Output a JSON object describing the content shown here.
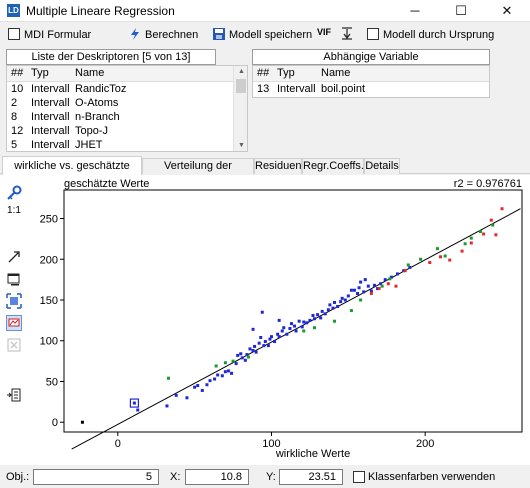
{
  "window": {
    "title": "Multiple Lineare Regression",
    "app_icon_text": "LD",
    "minimize_glyph": "─",
    "maximize_glyph": "☐",
    "close_glyph": "✕"
  },
  "toolbar": {
    "mdi_label": "MDI Formular",
    "mdi_checked": false,
    "calc_label": "Berechnen",
    "save_label": "Modell speichern",
    "vif_label": "VIF",
    "origin_label": "Modell durch Ursprung",
    "origin_checked": false
  },
  "descriptors": {
    "title": "Liste der Deskriptoren [5 von 13]",
    "columns": [
      "##",
      "Typ",
      "Name"
    ],
    "rows": [
      {
        "num": "10",
        "typ": "Intervall",
        "name": "RandicToz"
      },
      {
        "num": "2",
        "typ": "Intervall",
        "name": "O-Atoms"
      },
      {
        "num": "8",
        "typ": "Intervall",
        "name": "n-Branch"
      },
      {
        "num": "12",
        "typ": "Intervall",
        "name": "Topo-J"
      },
      {
        "num": "5",
        "typ": "Intervall",
        "name": "JHET"
      }
    ]
  },
  "dependent": {
    "title": "Abhängige Variable",
    "columns": [
      "##",
      "Typ",
      "Name"
    ],
    "rows": [
      {
        "num": "13",
        "typ": "Intervall",
        "name": "boil.point"
      }
    ]
  },
  "tabs": [
    {
      "label": "wirkliche vs. geschätzte Werte",
      "active": true
    },
    {
      "label": "Verteilung der Residuen",
      "active": false
    },
    {
      "label": "Residuen",
      "active": false
    },
    {
      "label": "Regr.Coeffs.",
      "active": false
    },
    {
      "label": "Details",
      "active": false
    }
  ],
  "sidebar": {
    "scale_label": "1:1",
    "icons": [
      "key-icon",
      "scale-1-1-icon",
      "diagonal-arrow-icon",
      "window-icon",
      "zoom-fit-icon",
      "class-colors-icon",
      "close-box-icon",
      "export-icon"
    ]
  },
  "chart_data": {
    "type": "scatter",
    "ylabel": "geschätzte Werte",
    "xlabel": "wirkliche Werte",
    "r2_text": "r2 = 0.976761",
    "xlim": [
      -35,
      263
    ],
    "ylim": [
      -12,
      285
    ],
    "xticks": [
      0,
      100,
      200
    ],
    "yticks": [
      0,
      50,
      100,
      150,
      200,
      250
    ],
    "grid": false,
    "regression_line": {
      "x1": -30,
      "y1": -33,
      "x2": 262,
      "y2": 262
    },
    "selected_point": {
      "x": 10.8,
      "y": 23.5
    },
    "colors": {
      "blue": "#1f28d8",
      "green": "#1c9a2c",
      "red": "#e22a2a",
      "line": "#000000",
      "outlier": "#000000"
    },
    "series": [
      {
        "color": "outlier",
        "points": [
          [
            -23,
            0
          ]
        ]
      },
      {
        "color": "blue",
        "points": [
          [
            10.8,
            23.5
          ],
          [
            13,
            15
          ],
          [
            32,
            20
          ],
          [
            38,
            33
          ],
          [
            45,
            30
          ],
          [
            50,
            43
          ],
          [
            52,
            45
          ],
          [
            55,
            39
          ],
          [
            58,
            46
          ],
          [
            60,
            51
          ],
          [
            63,
            53
          ],
          [
            65,
            58
          ],
          [
            68,
            57
          ],
          [
            70,
            62
          ],
          [
            72,
            63
          ],
          [
            74,
            60
          ],
          [
            77,
            72
          ],
          [
            78,
            82
          ],
          [
            80,
            84
          ],
          [
            81,
            79
          ],
          [
            83,
            76
          ],
          [
            84,
            83
          ],
          [
            86,
            90
          ],
          [
            88,
            88
          ],
          [
            89,
            93
          ],
          [
            90,
            86
          ],
          [
            92,
            97
          ],
          [
            93,
            104
          ],
          [
            95,
            94
          ],
          [
            96,
            99
          ],
          [
            98,
            94
          ],
          [
            99,
            102
          ],
          [
            100,
            105
          ],
          [
            102,
            99
          ],
          [
            104,
            108
          ],
          [
            105,
            105
          ],
          [
            107,
            112
          ],
          [
            108,
            116
          ],
          [
            110,
            108
          ],
          [
            112,
            115
          ],
          [
            113,
            121
          ],
          [
            115,
            118
          ],
          [
            116,
            112
          ],
          [
            118,
            124
          ],
          [
            120,
            117
          ],
          [
            121,
            123
          ],
          [
            123,
            122
          ],
          [
            125,
            125
          ],
          [
            127,
            131
          ],
          [
            128,
            127
          ],
          [
            130,
            132
          ],
          [
            132,
            128
          ],
          [
            133,
            136
          ],
          [
            135,
            133
          ],
          [
            137,
            138
          ],
          [
            138,
            144
          ],
          [
            140,
            140
          ],
          [
            141,
            147
          ],
          [
            143,
            142
          ],
          [
            145,
            148
          ],
          [
            146,
            152
          ],
          [
            148,
            150
          ],
          [
            150,
            155
          ],
          [
            152,
            162
          ],
          [
            154,
            162
          ],
          [
            156,
            158
          ],
          [
            157,
            165
          ],
          [
            158,
            172
          ],
          [
            160,
            160
          ],
          [
            161,
            175
          ],
          [
            163,
            167
          ],
          [
            165,
            161
          ],
          [
            167,
            168
          ],
          [
            169,
            164
          ],
          [
            171,
            170
          ],
          [
            174,
            175
          ],
          [
            178,
            178
          ],
          [
            182,
            182
          ],
          [
            186,
            186
          ],
          [
            190,
            190
          ],
          [
            94,
            135
          ],
          [
            105,
            125
          ],
          [
            88,
            114
          ]
        ]
      },
      {
        "color": "green",
        "points": [
          [
            33,
            54
          ],
          [
            64,
            69
          ],
          [
            70,
            73
          ],
          [
            75,
            75
          ],
          [
            85,
            80
          ],
          [
            121,
            112
          ],
          [
            128,
            116
          ],
          [
            141,
            124
          ],
          [
            152,
            137
          ],
          [
            158,
            150
          ],
          [
            172,
            167
          ],
          [
            177,
            176
          ],
          [
            189,
            193
          ],
          [
            197,
            200
          ],
          [
            208,
            213
          ],
          [
            213,
            204
          ],
          [
            226,
            219
          ],
          [
            230,
            226
          ],
          [
            236,
            234
          ],
          [
            244,
            242
          ]
        ]
      },
      {
        "color": "red",
        "points": [
          [
            165,
            158
          ],
          [
            170,
            164
          ],
          [
            176,
            170
          ],
          [
            181,
            167
          ],
          [
            187,
            186
          ],
          [
            203,
            196
          ],
          [
            210,
            203
          ],
          [
            216,
            199
          ],
          [
            224,
            210
          ],
          [
            230,
            220
          ],
          [
            238,
            231
          ],
          [
            243,
            248
          ],
          [
            250,
            262
          ],
          [
            246,
            230
          ]
        ]
      }
    ]
  },
  "status": {
    "obj_label": "Obj.:",
    "obj_value": "5",
    "x_label": "X:",
    "x_value": "10.8",
    "y_label": "Y:",
    "y_value": "23.51",
    "class_colors_label": "Klassenfarben verwenden",
    "class_colors_checked": false
  }
}
